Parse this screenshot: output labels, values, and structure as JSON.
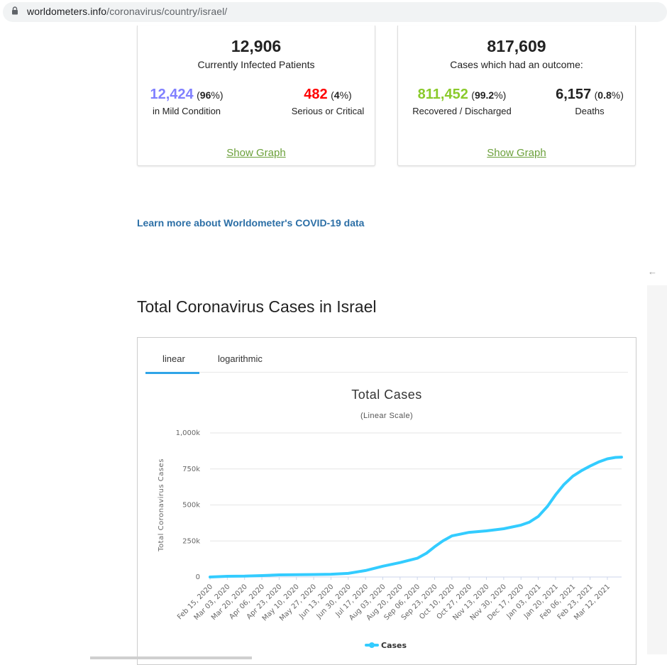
{
  "browser": {
    "domain": "worldometers.info",
    "path": "/coronavirus/country/israel/"
  },
  "active_cases": {
    "total": "12,906",
    "label": "Currently Infected Patients",
    "mild": {
      "value": "12,424",
      "pct": "96",
      "label": "in Mild Condition",
      "color": "#8080ff"
    },
    "serious": {
      "value": "482",
      "pct": "4",
      "label": "Serious or Critical",
      "color": "#ff0000"
    },
    "show_graph": "Show Graph"
  },
  "closed_cases": {
    "total": "817,609",
    "label": "Cases which had an outcome:",
    "recovered": {
      "value": "811,452",
      "pct": "99.2",
      "label": "Recovered / Discharged",
      "color": "#8ACA2B"
    },
    "deaths": {
      "value": "6,157",
      "pct": "0.8",
      "label": "Deaths",
      "color": "#222222"
    },
    "show_graph": "Show Graph"
  },
  "learn_more": "Learn more about Worldometer's COVID-19 data",
  "section_title": "Total Coronavirus Cases in Israel",
  "tabs": [
    {
      "label": "linear",
      "active": true
    },
    {
      "label": "logarithmic",
      "active": false
    }
  ],
  "chart_data": {
    "type": "line",
    "title": "Total Cases",
    "subtitle": "(Linear Scale)",
    "ylabel": "Total Coronavirus Cases",
    "ylim": [
      0,
      1000000
    ],
    "yticks": [
      0,
      250000,
      500000,
      750000,
      1000000
    ],
    "ytick_labels": [
      "0",
      "250k",
      "500k",
      "750k",
      "1,000k"
    ],
    "x_tick_labels": [
      "Feb 15, 2020",
      "Mar 03, 2020",
      "Mar 20, 2020",
      "Apr 06, 2020",
      "Apr 23, 2020",
      "May 10, 2020",
      "May 27, 2020",
      "Jun 13, 2020",
      "Jun 30, 2020",
      "Jul 17, 2020",
      "Aug 03, 2020",
      "Aug 20, 2020",
      "Sep 06, 2020",
      "Sep 23, 2020",
      "Oct 10, 2020",
      "Oct 27, 2020",
      "Nov 13, 2020",
      "Nov 30, 2020",
      "Dec 17, 2020",
      "Jan 03, 2021",
      "Jan 20, 2021",
      "Feb 06, 2021",
      "Feb 23, 2021",
      "Mar 12, 2021"
    ],
    "grid": true,
    "legend_position": "bottom-center",
    "series": [
      {
        "name": "Cases",
        "color": "#33ccff",
        "x": [
          "2020-02-15",
          "2020-03-03",
          "2020-03-20",
          "2020-04-06",
          "2020-04-23",
          "2020-05-10",
          "2020-05-27",
          "2020-06-13",
          "2020-06-30",
          "2020-07-17",
          "2020-08-03",
          "2020-08-20",
          "2020-09-06",
          "2020-09-15",
          "2020-09-23",
          "2020-10-01",
          "2020-10-10",
          "2020-10-27",
          "2020-11-13",
          "2020-11-30",
          "2020-12-17",
          "2020-12-25",
          "2021-01-03",
          "2021-01-12",
          "2021-01-20",
          "2021-01-28",
          "2021-02-06",
          "2021-02-15",
          "2021-02-23",
          "2021-03-04",
          "2021-03-12",
          "2021-03-20",
          "2021-03-26"
        ],
        "values": [
          0,
          5000,
          6000,
          10000,
          15000,
          16500,
          17000,
          19000,
          25000,
          45000,
          75000,
          100000,
          130000,
          165000,
          210000,
          250000,
          285000,
          310000,
          320000,
          335000,
          360000,
          380000,
          420000,
          490000,
          570000,
          640000,
          700000,
          740000,
          770000,
          800000,
          820000,
          830000,
          832000
        ]
      }
    ]
  }
}
